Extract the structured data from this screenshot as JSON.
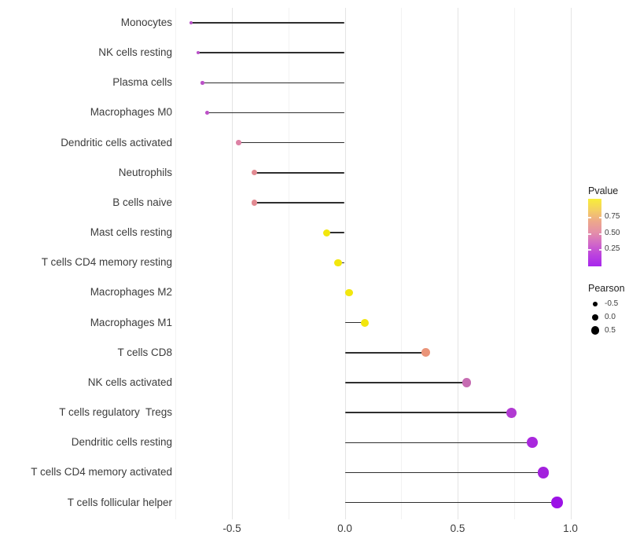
{
  "figure": {
    "background": "#ffffff"
  },
  "chart_data": {
    "type": "scatter",
    "variant": "horizontal-lollipop",
    "title": "",
    "xlabel": "",
    "ylabel": "",
    "grid": "major and minor vertical gridlines, light gray on white, no axis lines or ticks",
    "legend_position": "right",
    "x_tick_labels": [
      "-0.5",
      "0.0",
      "0.5",
      "1.0"
    ],
    "x_tick_values": [
      -0.5,
      0.0,
      0.5,
      1.0
    ],
    "x_minor_tick_values": [
      -0.75,
      -0.25,
      0.25,
      0.75
    ],
    "xlim": [
      -0.78,
      1.04
    ],
    "categories": [
      "Monocytes",
      "NK cells resting",
      "Plasma cells",
      "Macrophages M0",
      "Dendritic cells activated",
      "Neutrophils",
      "B cells naive",
      "Mast cells resting",
      "T cells CD4 memory resting",
      "Macrophages M2",
      "Macrophages M1",
      "T cells CD8",
      "NK cells activated",
      "T cells regulatory  Tregs",
      "Dendritic cells resting",
      "T cells CD4 memory activated",
      "T cells follicular helper"
    ],
    "points": [
      {
        "label": "Monocytes",
        "pearson": -0.68,
        "pvalue_est": 0.25,
        "color": "#b751c6"
      },
      {
        "label": "NK cells resting",
        "pearson": -0.65,
        "pvalue_est": 0.25,
        "color": "#ba50c8"
      },
      {
        "label": "Plasma cells",
        "pearson": -0.63,
        "pvalue_est": 0.25,
        "color": "#bb50c8"
      },
      {
        "label": "Macrophages M0",
        "pearson": -0.61,
        "pvalue_est": 0.26,
        "color": "#bd51c7"
      },
      {
        "label": "Dendritic cells activated",
        "pearson": -0.47,
        "pvalue_est": 0.45,
        "color": "#dd82a5"
      },
      {
        "label": "Neutrophils",
        "pearson": -0.4,
        "pvalue_est": 0.5,
        "color": "#e28a92"
      },
      {
        "label": "B cells naive",
        "pearson": -0.4,
        "pvalue_est": 0.5,
        "color": "#e28a92"
      },
      {
        "label": "Mast cells resting",
        "pearson": -0.08,
        "pvalue_est": 0.85,
        "color": "#f2e70d"
      },
      {
        "label": "T cells CD4 memory resting",
        "pearson": -0.03,
        "pvalue_est": 0.85,
        "color": "#f2e70d"
      },
      {
        "label": "Macrophages M2",
        "pearson": 0.02,
        "pvalue_est": 0.85,
        "color": "#f2e70d"
      },
      {
        "label": "Macrophages M1",
        "pearson": 0.09,
        "pvalue_est": 0.85,
        "color": "#f2e60e"
      },
      {
        "label": "T cells CD8",
        "pearson": 0.36,
        "pvalue_est": 0.6,
        "color": "#ea9479"
      },
      {
        "label": "NK cells activated",
        "pearson": 0.54,
        "pvalue_est": 0.35,
        "color": "#c66cb2"
      },
      {
        "label": "T cells regulatory  Tregs",
        "pearson": 0.74,
        "pvalue_est": 0.18,
        "color": "#b13ad2"
      },
      {
        "label": "Dendritic cells resting",
        "pearson": 0.83,
        "pvalue_est": 0.12,
        "color": "#a928dd"
      },
      {
        "label": "T cells CD4 memory activated",
        "pearson": 0.88,
        "pvalue_est": 0.1,
        "color": "#a321dd"
      },
      {
        "label": "T cells follicular helper",
        "pearson": 0.94,
        "pvalue_est": 0.05,
        "color": "#9c12e6"
      }
    ],
    "legend": {
      "pvalue": {
        "title": "Pvalue",
        "tick_labels": [
          "0.75",
          "0.50",
          "0.25"
        ],
        "tick_values": [
          0.75,
          0.5,
          0.25
        ],
        "range": [
          0,
          1
        ],
        "orientation": "vertical, high values (yellow) at top, low values (purple) at bottom",
        "gradient_colors": [
          "#f8ee38",
          "#f4cf63",
          "#eda88b",
          "#e48fa9",
          "#d168c8",
          "#bb42de",
          "#a827ec"
        ]
      },
      "pearson": {
        "title": "Pearson",
        "item_labels": [
          "-0.5",
          "0.0",
          "0.5"
        ],
        "item_values": [
          -0.5,
          0.0,
          0.5
        ],
        "dot_color": "#000000"
      }
    },
    "style_colors": {
      "stem": "#2e2e2e",
      "grid_major": "#e4e4e4",
      "grid_minor": "#f2f2f2",
      "axis_text": "#3c3c3c"
    }
  }
}
